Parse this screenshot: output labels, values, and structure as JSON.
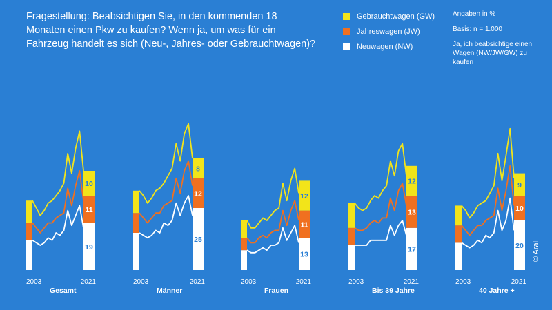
{
  "question": "Fragestellung: Beabsichtigen Sie, in den kommenden 18 Monaten einen Pkw zu kaufen? Wenn ja, um was für ein Fahrzeug handelt es sich (Neu-, Jahres- oder Gebrauchtwagen)?",
  "legend": [
    {
      "label": "Gebrauchtwagen (GW)",
      "color": "#f2e41a"
    },
    {
      "label": "Jahreswagen (JW)",
      "color": "#f07020"
    },
    {
      "label": "Neuwagen (NW)",
      "color": "#ffffff"
    }
  ],
  "notes": {
    "unit": "Angaben in %",
    "basis": "Basis: n = 1.000",
    "series_note": "Ja, ich beabsichtige einen Wagen (NW/JW/GW) zu kaufen"
  },
  "copyright": "© Aral",
  "colors": {
    "background": "#2a7fd4",
    "gw": "#f2e41a",
    "jw": "#f07020",
    "nw": "#ffffff",
    "label_on_white": "#2a7fd4"
  },
  "chart_data": [
    {
      "type": "area",
      "title": "Gesamt",
      "x_start_label": "2003",
      "x_end_label": "2021",
      "nw": [
        12,
        11,
        10,
        11,
        13,
        12,
        15,
        14,
        16,
        24,
        18,
        22,
        26,
        17,
        19
      ],
      "jw": [
        7,
        6,
        5,
        6,
        6,
        7,
        6,
        8,
        7,
        9,
        8,
        12,
        14,
        11,
        11
      ],
      "gw": [
        9,
        8,
        7,
        7,
        8,
        9,
        9,
        10,
        12,
        14,
        13,
        15,
        16,
        12,
        10
      ],
      "end_labels": {
        "nw": "19",
        "jw": "11",
        "gw": "10"
      }
    },
    {
      "type": "area",
      "title": "Männer",
      "x_start_label": "2003",
      "x_end_label": "2021",
      "nw": [
        15,
        14,
        13,
        14,
        16,
        15,
        19,
        18,
        20,
        27,
        22,
        27,
        30,
        22,
        25
      ],
      "jw": [
        8,
        7,
        6,
        7,
        7,
        8,
        7,
        9,
        8,
        10,
        9,
        13,
        14,
        12,
        12
      ],
      "gw": [
        9,
        9,
        8,
        8,
        9,
        10,
        9,
        11,
        13,
        14,
        13,
        15,
        15,
        11,
        8
      ],
      "end_labels": {
        "nw": "25",
        "jw": "12",
        "gw": "8"
      }
    },
    {
      "type": "area",
      "title": "Frauen",
      "x_start_label": "2003",
      "x_end_label": "2021",
      "nw": [
        8,
        7,
        7,
        8,
        9,
        8,
        10,
        10,
        11,
        17,
        12,
        15,
        18,
        11,
        13
      ],
      "jw": [
        5,
        4,
        4,
        5,
        5,
        5,
        5,
        6,
        5,
        7,
        6,
        9,
        10,
        9,
        11
      ],
      "gw": [
        7,
        6,
        6,
        6,
        7,
        7,
        7,
        8,
        9,
        11,
        10,
        12,
        13,
        11,
        12
      ],
      "end_labels": {
        "nw": "13",
        "jw": "11",
        "gw": "12"
      }
    },
    {
      "type": "area",
      "title": "Bis 39 Jahre",
      "x_start_label": "2003",
      "x_end_label": "2021",
      "nw": [
        10,
        10,
        10,
        10,
        12,
        12,
        12,
        12,
        12,
        18,
        14,
        18,
        20,
        14,
        17
      ],
      "jw": [
        7,
        6,
        6,
        7,
        7,
        8,
        7,
        9,
        9,
        11,
        10,
        14,
        15,
        12,
        13
      ],
      "gw": [
        10,
        9,
        8,
        8,
        9,
        10,
        10,
        11,
        13,
        15,
        14,
        16,
        16,
        12,
        12
      ],
      "end_labels": {
        "nw": "17",
        "jw": "13",
        "gw": "12"
      }
    },
    {
      "type": "area",
      "title": "40 Jahre +",
      "x_start_label": "2003",
      "x_end_label": "2021",
      "nw": [
        11,
        10,
        9,
        10,
        12,
        11,
        14,
        13,
        15,
        24,
        16,
        20,
        29,
        16,
        20
      ],
      "jw": [
        7,
        6,
        5,
        6,
        6,
        7,
        6,
        8,
        7,
        9,
        8,
        12,
        13,
        10,
        10
      ],
      "gw": [
        8,
        8,
        7,
        7,
        8,
        9,
        8,
        10,
        12,
        14,
        12,
        14,
        15,
        11,
        9
      ],
      "end_labels": {
        "nw": "20",
        "jw": "10",
        "gw": "9"
      }
    }
  ]
}
